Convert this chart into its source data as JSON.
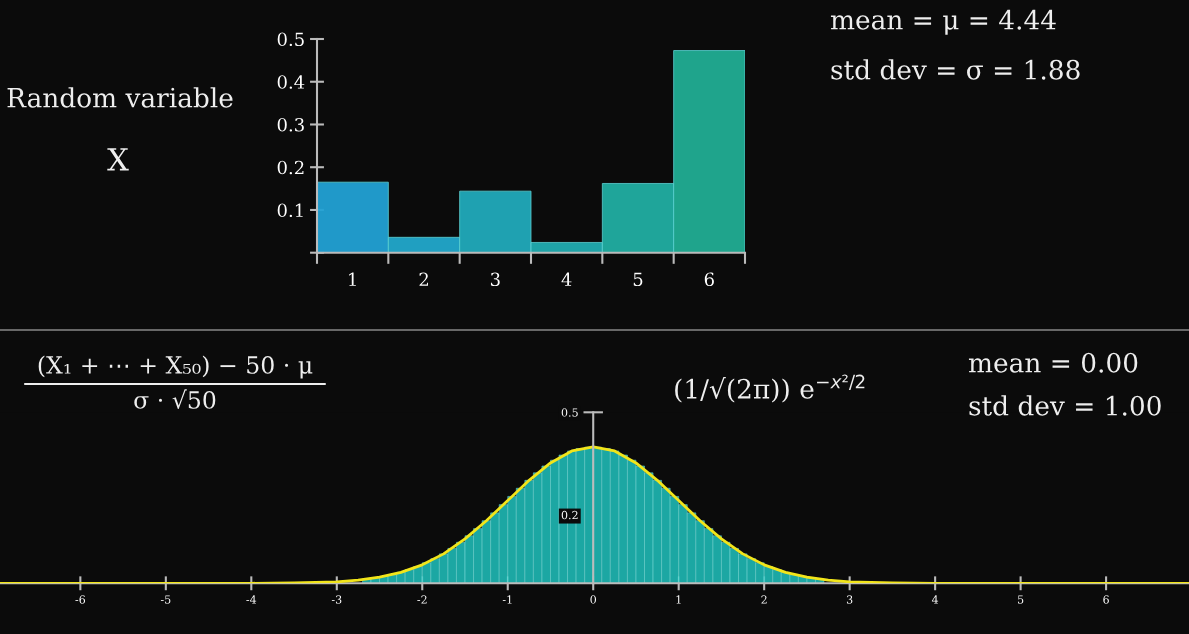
{
  "chart_data": [
    {
      "type": "bar",
      "categories": [
        "1",
        "2",
        "3",
        "4",
        "5",
        "6"
      ],
      "values": [
        0.165,
        0.036,
        0.144,
        0.024,
        0.162,
        0.473
      ],
      "colors": [
        "#22a2d4",
        "#22a8cc",
        "#21aabb",
        "#21acb0",
        "#21aea3",
        "#21ad94"
      ],
      "ylim": [
        0,
        0.5
      ],
      "yticks": [
        {
          "value": 0,
          "label": null
        },
        0.1,
        0.2,
        0.3,
        0.4,
        0.5
      ],
      "annotations": [
        "Random variable",
        "X",
        "mean = μ = 4.44",
        "std dev = σ = 1.88"
      ]
    },
    {
      "type": "histogram",
      "xlim": [
        -6.94,
        6.97
      ],
      "xticks": [
        -6,
        -5,
        -4,
        -3,
        -2,
        -1,
        0,
        1,
        2,
        3,
        4,
        5,
        6
      ],
      "ylim": [
        0,
        0.5
      ],
      "yticks": [
        {
          "value": 0.2,
          "label": "0.2"
        },
        0.5
      ],
      "series": [
        {
          "type": "histogram",
          "color": "#1fb8b4",
          "bins": [
            -2.7,
            -2.6,
            -2.5,
            -2.4,
            -2.3,
            -2.2,
            -2.1,
            -2.0,
            -1.9,
            -1.8,
            -1.7,
            -1.6,
            -1.5,
            -1.4,
            -1.3,
            -1.2,
            -1.1,
            -1.0,
            -0.9,
            -0.8,
            -0.7,
            -0.6,
            -0.5,
            -0.4,
            -0.3,
            -0.2,
            -0.1,
            0.0,
            0.1,
            0.2,
            0.3,
            0.4,
            0.5,
            0.6,
            0.7,
            0.8,
            0.9,
            1.0,
            1.1,
            1.2,
            1.3,
            1.4,
            1.5,
            1.6,
            1.7,
            1.8,
            1.9,
            2.0,
            2.1,
            2.2,
            2.3,
            2.4,
            2.5,
            2.6,
            2.7
          ],
          "values": [
            0.012,
            0.015,
            0.02,
            0.025,
            0.032,
            0.04,
            0.049,
            0.06,
            0.072,
            0.086,
            0.102,
            0.12,
            0.139,
            0.16,
            0.183,
            0.206,
            0.23,
            0.254,
            0.278,
            0.301,
            0.323,
            0.343,
            0.36,
            0.375,
            0.387,
            0.394,
            0.398,
            0.398,
            0.394,
            0.387,
            0.375,
            0.36,
            0.343,
            0.323,
            0.301,
            0.278,
            0.254,
            0.23,
            0.206,
            0.183,
            0.16,
            0.139,
            0.12,
            0.102,
            0.086,
            0.072,
            0.06,
            0.049,
            0.04,
            0.032,
            0.025,
            0.02,
            0.015,
            0.012
          ]
        },
        {
          "type": "line",
          "color": "#f2e51a",
          "x": [
            -6.94,
            -4,
            -3.5,
            -3,
            -2.75,
            -2.5,
            -2.25,
            -2,
            -1.75,
            -1.5,
            -1.25,
            -1,
            -0.75,
            -0.5,
            -0.25,
            0,
            0.25,
            0.5,
            0.75,
            1,
            1.25,
            1.5,
            1.75,
            2,
            2.25,
            2.5,
            2.75,
            3,
            3.5,
            4,
            6.97
          ],
          "values": [
            0,
            0.0,
            0.001,
            0.004,
            0.009,
            0.018,
            0.032,
            0.054,
            0.086,
            0.13,
            0.183,
            0.242,
            0.301,
            0.352,
            0.387,
            0.399,
            0.387,
            0.352,
            0.301,
            0.242,
            0.183,
            0.13,
            0.086,
            0.054,
            0.032,
            0.018,
            0.009,
            0.004,
            0.001,
            0.0,
            0
          ]
        }
      ],
      "annotations": [
        "(X₁ + ⋯ + X₅₀) − 50 · μ",
        "σ · √50",
        "(1/√(2π)) e$^{−x²/2}$",
        "mean = 0.00",
        "std dev = 1.00"
      ]
    }
  ]
}
